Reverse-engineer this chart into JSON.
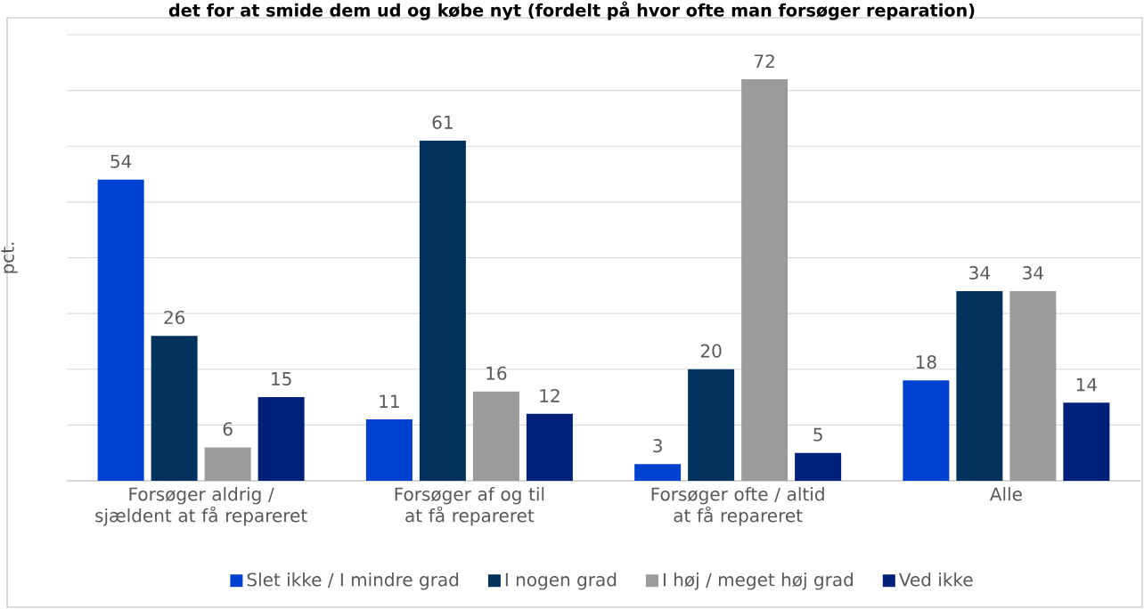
{
  "chart_data": {
    "type": "bar",
    "title": "det for at smide dem ud og købe nyt (fordelt på hvor ofte man forsøger reparation)",
    "ylabel": "pct.",
    "categories": [
      "Forsøger aldrig / sjældent at få repareret",
      "Forsøger af og til at få repareret",
      "Forsøger ofte / altid at få repareret",
      "Alle"
    ],
    "series": [
      {
        "name": "Slet ikke / I mindre grad",
        "color": "#0041d1",
        "values": [
          54,
          11,
          3,
          18
        ]
      },
      {
        "name": "I nogen grad",
        "color": "#00325e",
        "values": [
          26,
          61,
          20,
          34
        ]
      },
      {
        "name": "I høj / meget høj grad",
        "color": "#9b9b9b",
        "values": [
          6,
          16,
          72,
          34
        ]
      },
      {
        "name": "Ved ikke",
        "color": "#00217a",
        "values": [
          15,
          12,
          5,
          14
        ]
      }
    ],
    "ylim": [
      0,
      80
    ],
    "yticks": [
      {
        "value": 0,
        "label": null
      },
      {
        "value": 10,
        "label": null
      },
      {
        "value": 20,
        "label": null
      },
      {
        "value": 30,
        "label": null
      },
      {
        "value": 40,
        "label": null
      },
      {
        "value": 50,
        "label": null
      },
      {
        "value": 60,
        "label": null
      },
      {
        "value": 70,
        "label": null
      },
      {
        "value": 80,
        "label": null
      }
    ],
    "tick_labels": "x",
    "grid": "y",
    "legend": "bottom",
    "data_labels": true
  }
}
